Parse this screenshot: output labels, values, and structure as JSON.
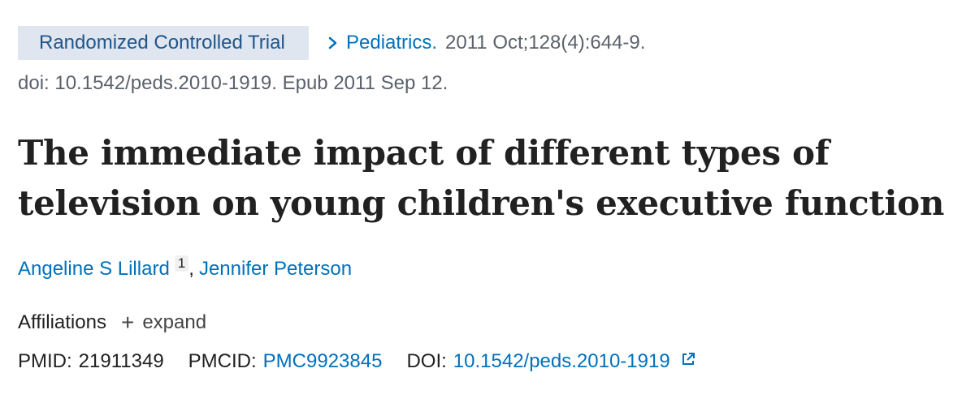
{
  "header": {
    "publication_type": "Randomized Controlled Trial",
    "journal": "Pediatrics.",
    "citation": "2011 Oct;128(4):644-9.",
    "doi_line": "doi: 10.1542/peds.2010-1919. Epub 2011 Sep 12."
  },
  "article": {
    "title": "The immediate impact of different types of television on young children's executive function"
  },
  "authors": [
    {
      "name": "Angeline S Lillard",
      "affiliation_ref": "1"
    },
    {
      "name": "Jennifer Peterson"
    }
  ],
  "author_separator": ",",
  "affiliations": {
    "label": "Affiliations",
    "expand_label": "expand",
    "expand_icon": "plus-icon"
  },
  "identifiers": {
    "pmid_label": "PMID:",
    "pmid_value": "21911349",
    "pmcid_label": "PMCID:",
    "pmcid_value": "PMC9923845",
    "doi_label": "DOI:",
    "doi_value": "10.1542/peds.2010-1919",
    "doi_icon": "external-link-icon"
  },
  "colors": {
    "link": "#0071bc",
    "badge_bg": "#dfe6ef",
    "badge_text": "#20558a",
    "muted_text": "#5b616b",
    "body_text": "#212121"
  }
}
